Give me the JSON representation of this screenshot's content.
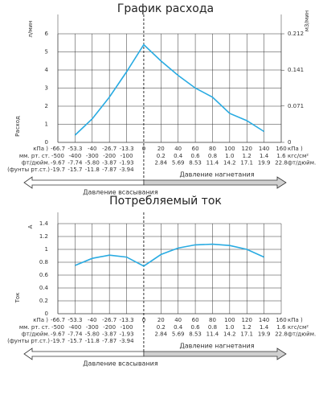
{
  "chart_data": [
    {
      "type": "line",
      "title": "График расхода",
      "y_unit": "л/мин",
      "y_label": "Расход",
      "y2_unit": "м3/мин",
      "ylim": [
        0,
        6
      ],
      "yticks": [
        0,
        1,
        2,
        3,
        4,
        5,
        6
      ],
      "y2lim": [
        0,
        0.212
      ],
      "y2ticks": [
        0,
        0.071,
        0.141,
        0.212
      ],
      "grid": true,
      "categories": [
        "-66.7",
        "-53.3",
        "-40",
        "-26.7",
        "-13.3",
        "0",
        "20",
        "40",
        "60",
        "80",
        "100",
        "120",
        "140",
        "160"
      ],
      "series": [
        {
          "color": "#29abe2",
          "values": [
            null,
            0.4,
            1.3,
            2.5,
            3.9,
            5.4,
            4.5,
            3.7,
            3.0,
            2.5,
            1.6,
            1.2,
            0.6,
            null
          ]
        }
      ],
      "x_unit_left": "кПа )",
      "x_unit_right": "кПа )",
      "left_rows": [
        {
          "unit": "мм. рт. ст.",
          "values": [
            "-500",
            "-400",
            "-300",
            "-200",
            "-100"
          ]
        },
        {
          "unit": "фт/дюйм.",
          "values": [
            "-9.67",
            "-7.74",
            "-5.80",
            "-3.87",
            "-1.93"
          ]
        },
        {
          "unit": "(фунты рт.ст.)",
          "values": [
            "-19.7",
            "-15.7",
            "-11.8",
            "-7.87",
            "-3.94"
          ]
        }
      ],
      "right_rows": [
        {
          "unit": "кгс/см²",
          "values": [
            "0.2",
            "0.4",
            "0.6",
            "0.8",
            "1.0",
            "1.2",
            "1.4",
            "1.6"
          ]
        },
        {
          "unit": "фт/дюйм.",
          "values": [
            "2.84",
            "5.69",
            "8.53",
            "11.4",
            "14.2",
            "17.1",
            "19.9",
            "22.8"
          ]
        }
      ],
      "left_arrow": "Давление всасывания",
      "right_arrow": "Давление нагнетания"
    },
    {
      "type": "line",
      "title": "Потребляемый ток",
      "y_unit": "A",
      "y_label": "Ток",
      "ylim": [
        0,
        1.4
      ],
      "yticks": [
        0,
        0.2,
        0.4,
        0.6,
        0.8,
        1,
        1.2,
        1.4
      ],
      "grid": true,
      "categories": [
        "-66.7",
        "-53.3",
        "-40",
        "-26.7",
        "-13.3",
        "0",
        "20",
        "40",
        "60",
        "80",
        "100",
        "120",
        "140",
        "160"
      ],
      "series": [
        {
          "color": "#29abe2",
          "values": [
            null,
            0.75,
            0.86,
            0.91,
            0.88,
            0.74,
            0.92,
            1.02,
            1.07,
            1.08,
            1.06,
            1.0,
            0.88,
            null
          ]
        }
      ],
      "x_unit_left": "кПа )",
      "x_unit_right": "кПа )",
      "left_rows": [
        {
          "unit": "мм. рт. ст.",
          "values": [
            "-500",
            "-400",
            "-300",
            "-200",
            "-100"
          ]
        },
        {
          "unit": "фт/дюйм.",
          "values": [
            "-9.67",
            "-7.74",
            "-5.80",
            "-3.87",
            "-1.93"
          ]
        },
        {
          "unit": "(фунты рт.ст.)",
          "values": [
            "-19.7",
            "-15.7",
            "-11.8",
            "-7.87",
            "-3.94"
          ]
        }
      ],
      "right_rows": [
        {
          "unit": "кгс/см²",
          "values": [
            "0.2",
            "0.4",
            "0.6",
            "0.8",
            "1.0",
            "1.2",
            "1.4",
            "1.6"
          ]
        },
        {
          "unit": "фт/дюйм.",
          "values": [
            "2.84",
            "5.69",
            "8.53",
            "11.4",
            "14.2",
            "17.1",
            "19.9",
            "22.8"
          ]
        }
      ],
      "left_arrow": "Давление всасывания",
      "right_arrow": "Давление нагнетания"
    }
  ]
}
